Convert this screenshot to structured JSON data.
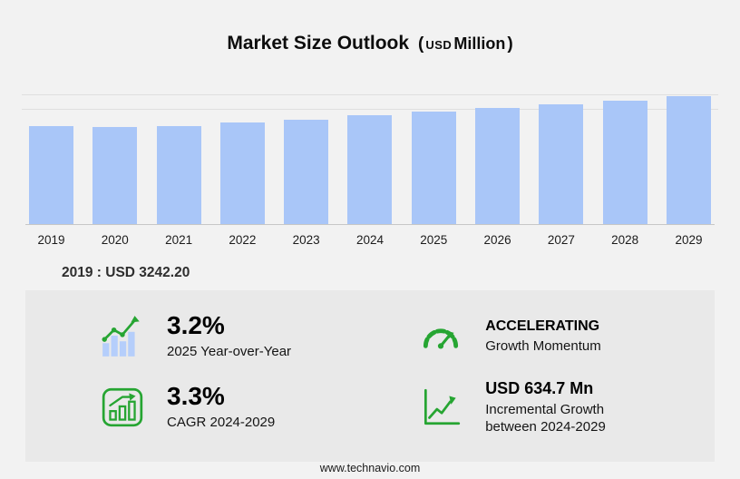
{
  "title": {
    "main": "Market Size Outlook",
    "paren_open": "(",
    "currency": "USD",
    "scale": "Million",
    "paren_close": ")"
  },
  "chart_data": {
    "type": "bar",
    "categories": [
      "2019",
      "2020",
      "2021",
      "2022",
      "2023",
      "2024",
      "2025",
      "2026",
      "2027",
      "2028",
      "2029"
    ],
    "values": [
      3242.2,
      3205.0,
      3250.0,
      3360.0,
      3455.0,
      3602.8,
      3718.1,
      3844.2,
      3971.0,
      4102.1,
      4237.5
    ],
    "title": "Market Size Outlook (USD Million)",
    "xlabel": "",
    "ylabel": "",
    "ylim": [
      0,
      4300
    ],
    "grid": true,
    "bar_color": "#a9c6f8",
    "legend": "none"
  },
  "base_note": {
    "text": "2019 : USD 3242.20"
  },
  "stats": [
    {
      "icon": "yoy-bars-arrow-icon",
      "headline": "3.2%",
      "subtext": "2025 Year-over-Year"
    },
    {
      "icon": "gauge-icon",
      "headline": "ACCELERATING",
      "subtext": "Growth Momentum"
    },
    {
      "icon": "cagr-chart-icon",
      "headline": "3.3%",
      "subtext": "CAGR 2024-2029"
    },
    {
      "icon": "incremental-growth-icon",
      "headline": "USD 634.7 Mn",
      "subtext": "Incremental Growth between 2024-2029"
    }
  ],
  "accent_colors": {
    "bar_blue": "#a9c6f8",
    "icon_green": "#26a532",
    "panel_gray": "#e9e9e9",
    "background_gray": "#f2f2f2"
  },
  "footer": {
    "url": "www.technavio.com"
  }
}
